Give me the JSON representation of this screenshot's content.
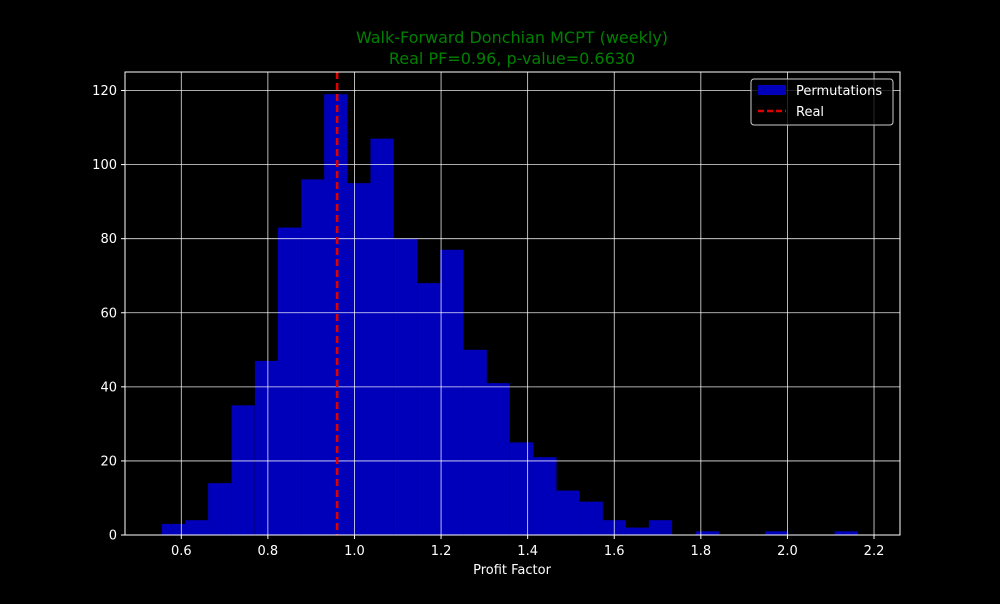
{
  "chart_data": {
    "type": "bar",
    "title": "Walk-Forward Donchian MCPT (weekly)",
    "subtitle": "Real PF=0.96, p-value=0.6630",
    "xlabel": "Profit Factor",
    "ylabel": "",
    "xlim": [
      0.47,
      2.26
    ],
    "ylim": [
      0,
      125
    ],
    "xticks": [
      0.6,
      0.8,
      1.0,
      1.2,
      1.4,
      1.6,
      1.8,
      2.0,
      2.2
    ],
    "xtick_labels": [
      "0.6",
      "0.8",
      "1.0",
      "1.2",
      "1.4",
      "1.6",
      "1.8",
      "2.0",
      "2.2"
    ],
    "yticks": [
      0,
      20,
      40,
      60,
      80,
      100,
      120
    ],
    "ytick_labels": [
      "0",
      "20",
      "40",
      "60",
      "80",
      "100",
      "120"
    ],
    "grid": true,
    "legend_position": "top-right",
    "bin_width": 0.0536,
    "series": [
      {
        "name": "Permutations",
        "type": "histogram",
        "color": "#0000bb",
        "bin_starts": [
          0.555,
          0.609,
          0.662,
          0.716,
          0.77,
          0.823,
          0.877,
          0.93,
          0.984,
          1.037,
          1.091,
          1.145,
          1.198,
          1.252,
          1.305,
          1.359,
          1.413,
          1.466,
          1.52,
          1.573,
          1.627,
          1.68,
          1.734,
          1.788,
          1.841,
          1.895,
          1.948,
          2.002,
          2.055,
          2.109
        ],
        "values": [
          3,
          4,
          14,
          35,
          47,
          83,
          96,
          119,
          95,
          107,
          80,
          68,
          77,
          50,
          41,
          25,
          21,
          12,
          9,
          4,
          2,
          4,
          0,
          1,
          0,
          0,
          1,
          0,
          0,
          1
        ]
      },
      {
        "name": "Real",
        "type": "vline",
        "x": 0.96,
        "color": "#e00000",
        "style": "dashed"
      }
    ],
    "colors": {
      "background": "#000000",
      "title": "#008000",
      "text": "#ffffff",
      "grid": "#ffffff",
      "legend_border": "#cccccc"
    }
  }
}
